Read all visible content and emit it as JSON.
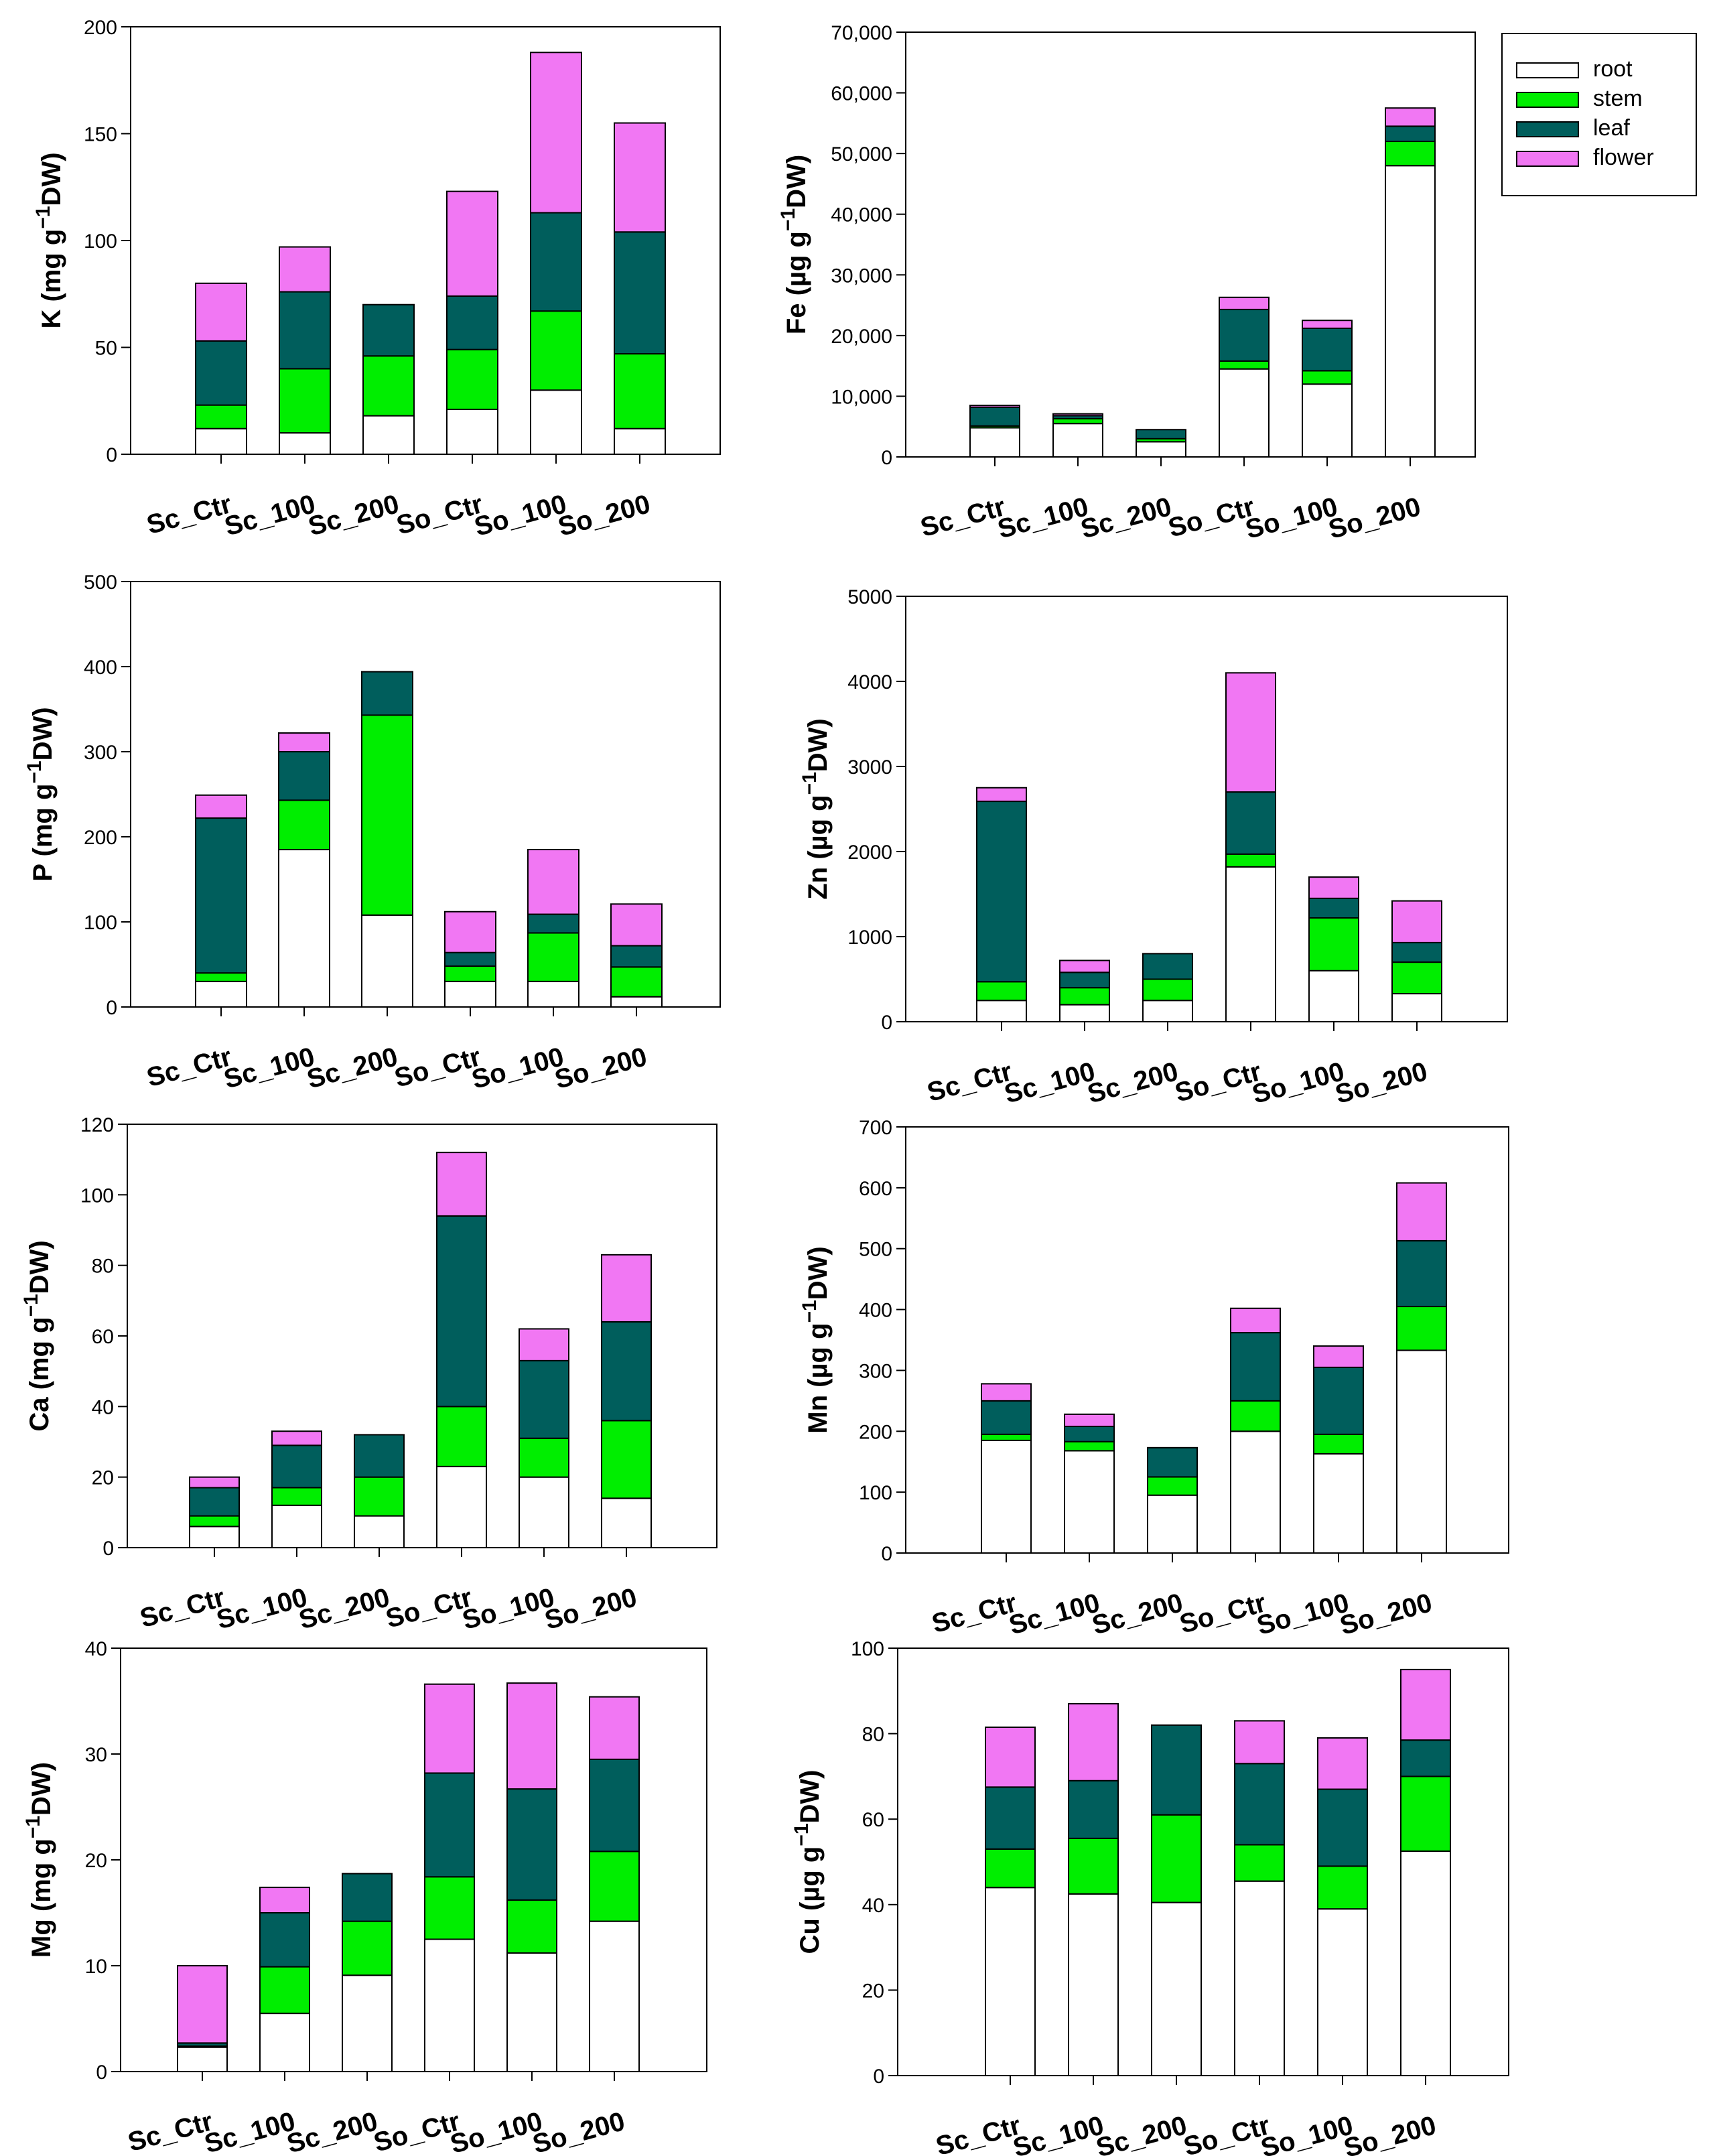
{
  "legend": [
    {
      "key": "root",
      "label": "root",
      "color": "#ffffff"
    },
    {
      "key": "stem",
      "label": "stem",
      "color": "#00ee00"
    },
    {
      "key": "leaf",
      "label": "leaf",
      "color": "#005e5c"
    },
    {
      "key": "flower",
      "label": "flower",
      "color": "#f177f3"
    }
  ],
  "chart_data": [
    {
      "id": "K",
      "type": "bar",
      "stacked": true,
      "ylabel_main": "K (mg g",
      "ylabel_sup": "−1",
      "ylabel_tail": "DW)",
      "ylim": [
        0,
        200
      ],
      "yticks": [
        "0",
        "50",
        "100",
        "150",
        "200"
      ],
      "categories": [
        "Sc_Ctr",
        "Sc_100",
        "Sc_200",
        "So_Ctr",
        "So_100",
        "So_200"
      ],
      "series": [
        {
          "name": "root",
          "values": [
            12,
            10,
            18,
            21,
            30,
            12
          ]
        },
        {
          "name": "stem",
          "values": [
            11,
            30,
            28,
            28,
            37,
            35
          ]
        },
        {
          "name": "leaf",
          "values": [
            30,
            36,
            24,
            25,
            46,
            57
          ]
        },
        {
          "name": "flower",
          "values": [
            27,
            21,
            0,
            49,
            75,
            51
          ]
        }
      ]
    },
    {
      "id": "Fe",
      "type": "bar",
      "stacked": true,
      "ylabel_main": "Fe (µg g",
      "ylabel_sup": "−1",
      "ylabel_tail": "DW)",
      "ylim": [
        0,
        70000
      ],
      "yticks": [
        "0",
        "10,000",
        "20,000",
        "30,000",
        "40,000",
        "50,000",
        "60,000",
        "70,000"
      ],
      "categories": [
        "Sc_Ctr",
        "Sc_100",
        "Sc_200",
        "So_Ctr",
        "So_100",
        "So_200"
      ],
      "series": [
        {
          "name": "root",
          "values": [
            4800,
            5500,
            2500,
            14500,
            12000,
            48000
          ]
        },
        {
          "name": "stem",
          "values": [
            300,
            800,
            500,
            1300,
            2200,
            4000
          ]
        },
        {
          "name": "leaf",
          "values": [
            3100,
            500,
            1500,
            8500,
            7000,
            2500
          ]
        },
        {
          "name": "flower",
          "values": [
            300,
            300,
            0,
            2000,
            1300,
            3000
          ]
        }
      ]
    },
    {
      "id": "P",
      "type": "bar",
      "stacked": true,
      "ylabel_main": "P (mg g",
      "ylabel_sup": "−1",
      "ylabel_tail": "DW)",
      "ylim": [
        0,
        500
      ],
      "yticks": [
        "0",
        "100",
        "200",
        "300",
        "400",
        "500"
      ],
      "categories": [
        "Sc_Ctr",
        "Sc_100",
        "Sc_200",
        "So_Ctr",
        "So_100",
        "So_200"
      ],
      "series": [
        {
          "name": "root",
          "values": [
            30,
            185,
            108,
            30,
            30,
            12
          ]
        },
        {
          "name": "stem",
          "values": [
            10,
            58,
            235,
            18,
            57,
            35
          ]
        },
        {
          "name": "leaf",
          "values": [
            182,
            57,
            51,
            16,
            22,
            25
          ]
        },
        {
          "name": "flower",
          "values": [
            27,
            22,
            0,
            48,
            76,
            49
          ]
        }
      ]
    },
    {
      "id": "Zn",
      "type": "bar",
      "stacked": true,
      "ylabel_main": "Zn (µg g",
      "ylabel_sup": "−1",
      "ylabel_tail": "DW)",
      "ylim": [
        0,
        5000
      ],
      "yticks": [
        "0",
        "1000",
        "2000",
        "3000",
        "4000",
        "5000"
      ],
      "categories": [
        "Sc_Ctr",
        "Sc_100",
        "Sc_200",
        "So_Ctr",
        "So_100",
        "So_200"
      ],
      "series": [
        {
          "name": "root",
          "values": [
            250,
            200,
            250,
            1820,
            600,
            330
          ]
        },
        {
          "name": "stem",
          "values": [
            220,
            200,
            250,
            150,
            620,
            370
          ]
        },
        {
          "name": "leaf",
          "values": [
            2120,
            180,
            300,
            730,
            230,
            230
          ]
        },
        {
          "name": "flower",
          "values": [
            160,
            140,
            0,
            1400,
            250,
            490
          ]
        }
      ]
    },
    {
      "id": "Ca",
      "type": "bar",
      "stacked": true,
      "ylabel_main": "Ca (mg g",
      "ylabel_sup": "−1",
      "ylabel_tail": "DW)",
      "ylim": [
        0,
        120
      ],
      "yticks": [
        "0",
        "20",
        "40",
        "60",
        "80",
        "100",
        "120"
      ],
      "categories": [
        "Sc_Ctr",
        "Sc_100",
        "Sc_200",
        "So_Ctr",
        "So_100",
        "So_200"
      ],
      "series": [
        {
          "name": "root",
          "values": [
            6,
            12,
            9,
            23,
            20,
            14
          ]
        },
        {
          "name": "stem",
          "values": [
            3,
            5,
            11,
            17,
            11,
            22
          ]
        },
        {
          "name": "leaf",
          "values": [
            8,
            12,
            12,
            54,
            22,
            28
          ]
        },
        {
          "name": "flower",
          "values": [
            3,
            4,
            0,
            18,
            9,
            19
          ]
        }
      ]
    },
    {
      "id": "Mn",
      "type": "bar",
      "stacked": true,
      "ylabel_main": "Mn (µg g",
      "ylabel_sup": "−1",
      "ylabel_tail": "DW)",
      "ylim": [
        0,
        700
      ],
      "yticks": [
        "0",
        "100",
        "200",
        "300",
        "400",
        "500",
        "600",
        "700"
      ],
      "categories": [
        "Sc_Ctr",
        "Sc_100",
        "Sc_200",
        "So_Ctr",
        "So_100",
        "So_200"
      ],
      "series": [
        {
          "name": "root",
          "values": [
            185,
            168,
            95,
            200,
            163,
            333
          ]
        },
        {
          "name": "stem",
          "values": [
            10,
            15,
            30,
            50,
            32,
            72
          ]
        },
        {
          "name": "leaf",
          "values": [
            55,
            25,
            48,
            112,
            110,
            108
          ]
        },
        {
          "name": "flower",
          "values": [
            28,
            20,
            0,
            40,
            35,
            95
          ]
        }
      ]
    },
    {
      "id": "Mg",
      "type": "bar",
      "stacked": true,
      "ylabel_main": "Mg (mg g",
      "ylabel_sup": "−1",
      "ylabel_tail": "DW)",
      "ylim": [
        0,
        40
      ],
      "yticks": [
        "0",
        "10",
        "20",
        "30",
        "40"
      ],
      "categories": [
        "Sc_Ctr",
        "Sc_100",
        "Sc_200",
        "So_Ctr",
        "So_100",
        "So_200"
      ],
      "series": [
        {
          "name": "root",
          "values": [
            2.3,
            5.5,
            9.1,
            12.5,
            11.2,
            14.2
          ]
        },
        {
          "name": "stem",
          "values": [
            0.1,
            4.4,
            5.1,
            5.9,
            5.0,
            6.6
          ]
        },
        {
          "name": "leaf",
          "values": [
            0.3,
            5.1,
            4.5,
            9.8,
            10.5,
            8.7
          ]
        },
        {
          "name": "flower",
          "values": [
            7.3,
            2.4,
            0,
            8.4,
            10.0,
            5.9
          ]
        }
      ]
    },
    {
      "id": "Cu",
      "type": "bar",
      "stacked": true,
      "ylabel_main": "Cu (µg g",
      "ylabel_sup": "−1",
      "ylabel_tail": "DW)",
      "ylim": [
        0,
        100
      ],
      "yticks": [
        "0",
        "20",
        "40",
        "60",
        "80",
        "100"
      ],
      "categories": [
        "Sc_Ctr",
        "Sc_100",
        "Sc_200",
        "So_Ctr",
        "So_100",
        "So_200"
      ],
      "series": [
        {
          "name": "root",
          "values": [
            44,
            42.5,
            40.5,
            45.5,
            39,
            52.5
          ]
        },
        {
          "name": "stem",
          "values": [
            9,
            13,
            20.5,
            8.5,
            10,
            17.5
          ]
        },
        {
          "name": "leaf",
          "values": [
            14.5,
            13.5,
            21,
            19,
            18,
            8.5
          ]
        },
        {
          "name": "flower",
          "values": [
            14,
            18,
            0,
            10,
            12,
            16.5
          ]
        }
      ]
    }
  ]
}
